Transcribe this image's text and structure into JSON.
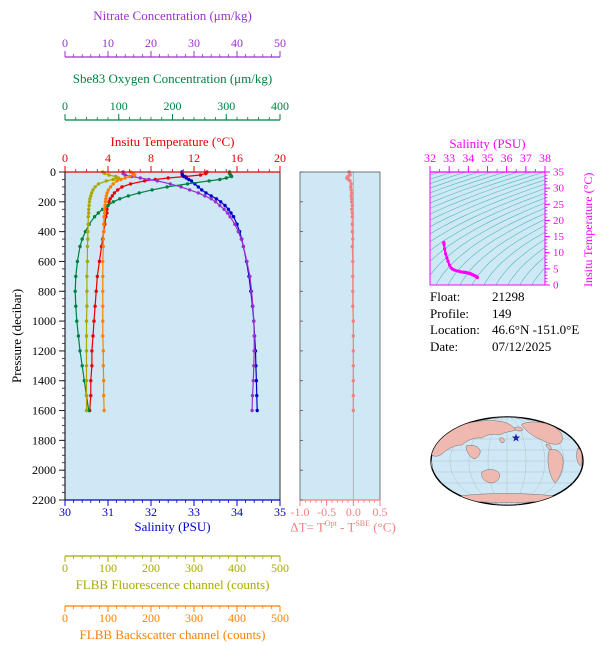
{
  "colors": {
    "nitrate": "#9b30d0",
    "oxygen": "#008040",
    "temperature": "#e60000",
    "salinity": "#0000cd",
    "pressure": "#000000",
    "fluorescence": "#a8a800",
    "backscatter": "#ff8000",
    "delta_t": "#f08080",
    "ts": "#ff00ff",
    "contour": "#35b2b2",
    "plot_bg": "#cfe8f5",
    "land": "#efb9b0",
    "ocean": "#cfe8f5",
    "marker_star": "#2020a0"
  },
  "top_axes": [
    {
      "id": "nitrate",
      "label": "Nitrate Concentration (μm/kg)",
      "ticks": [
        "0",
        "10",
        "20",
        "30",
        "40",
        "50"
      ],
      "range": [
        0,
        50
      ],
      "minor_step": 2,
      "color": "nitrate"
    },
    {
      "id": "oxygen",
      "label": "Sbe83 Oxygen Concentration (μm/kg)",
      "ticks": [
        "0",
        "100",
        "200",
        "300",
        "400"
      ],
      "range": [
        0,
        400
      ],
      "minor_step": 20,
      "color": "oxygen"
    },
    {
      "id": "temperature",
      "label": "Insitu Temperature (°C)",
      "ticks": [
        "0",
        "4",
        "8",
        "12",
        "16",
        "20"
      ],
      "range": [
        0,
        20
      ],
      "minor_step": 1,
      "color": "temperature"
    }
  ],
  "pressure_axis": {
    "label": "Pressure (decibar)",
    "ticks": [
      "0",
      "200",
      "400",
      "600",
      "800",
      "1000",
      "1200",
      "1400",
      "1600",
      "1800",
      "2000",
      "2200"
    ],
    "range": [
      0,
      2200
    ],
    "minor_step": 50
  },
  "salinity_axis": {
    "label": "Salinity (PSU)",
    "ticks": [
      "30",
      "31",
      "32",
      "33",
      "34",
      "35"
    ],
    "range": [
      30,
      35
    ],
    "minor_step": 0.2,
    "color": "salinity"
  },
  "delta_axis": {
    "label_parts": {
      "pre": "ΔT= T",
      "sup1": "Opt",
      "mid": " - T",
      "sup2": "SBE",
      "post": " (°C)"
    },
    "ticks": [
      "-1.0",
      "-0.5",
      "0.0",
      "0.5"
    ],
    "range": [
      -1.0,
      0.5
    ],
    "minor_step": 0.1,
    "color": "delta_t"
  },
  "ts_plot": {
    "salinity_label": "Salinity (PSU)",
    "temperature_label": "Insitu Temperature (°C)",
    "s_ticks": [
      "32",
      "33",
      "34",
      "35",
      "36",
      "37",
      "38"
    ],
    "s_range": [
      32,
      38
    ],
    "s_minor": 0.5,
    "t_ticks": [
      "0",
      "5",
      "10",
      "15",
      "20",
      "25",
      "30",
      "35"
    ],
    "t_range": [
      0,
      35
    ],
    "t_minor": 1,
    "sigma_levels_start": 18,
    "sigma_levels_end": 30,
    "sigma_step": 0.5
  },
  "flbb_axes": [
    {
      "id": "fluorescence",
      "label": "FLBB Fluorescence channel (counts)",
      "ticks": [
        "0",
        "100",
        "200",
        "300",
        "400",
        "500"
      ],
      "range": [
        0,
        500
      ],
      "minor_step": 20,
      "color": "fluorescence"
    },
    {
      "id": "backscatter",
      "label": "FLBB Backscatter channel (counts)",
      "ticks": [
        "0",
        "100",
        "200",
        "300",
        "400",
        "500"
      ],
      "range": [
        0,
        500
      ],
      "minor_step": 20,
      "color": "backscatter"
    }
  ],
  "info": {
    "rows": [
      {
        "label": "Float:",
        "value": "21298"
      },
      {
        "label": "Profile:",
        "value": "149"
      },
      {
        "label": "Location:",
        "value": "46.6°N -151.0°E"
      },
      {
        "label": "Date:",
        "value": "07/12/2025"
      }
    ]
  },
  "chart_data": {
    "type": "line",
    "title": "Float profile 21298 / 149",
    "ylabel": "Pressure (decibar)",
    "ylim": [
      0,
      2200
    ],
    "pressure_dbar": [
      0,
      10,
      20,
      30,
      40,
      50,
      60,
      80,
      100,
      120,
      140,
      160,
      180,
      200,
      225,
      250,
      275,
      300,
      350,
      400,
      450,
      500,
      600,
      700,
      800,
      900,
      1000,
      1100,
      1200,
      1300,
      1400,
      1500,
      1600
    ],
    "series": [
      {
        "id": "temperature",
        "name": "Insitu Temperature (°C)",
        "range": [
          0,
          20
        ],
        "color": "temperature",
        "values": [
          13.2,
          13.1,
          12.6,
          11.2,
          9.6,
          8.4,
          7.4,
          6.1,
          5.3,
          4.9,
          4.6,
          4.4,
          4.2,
          4.1,
          4.0,
          3.9,
          3.9,
          3.8,
          3.7,
          3.6,
          3.5,
          3.4,
          3.2,
          3.0,
          2.9,
          2.8,
          2.7,
          2.6,
          2.5,
          2.5,
          2.4,
          2.4,
          2.3
        ]
      },
      {
        "id": "salinity",
        "name": "Salinity (PSU)",
        "range": [
          30,
          35
        ],
        "color": "salinity",
        "values": [
          32.72,
          32.72,
          32.73,
          32.76,
          32.82,
          32.88,
          32.94,
          33.02,
          33.1,
          33.18,
          33.28,
          33.4,
          33.52,
          33.62,
          33.72,
          33.8,
          33.86,
          33.92,
          34.0,
          34.06,
          34.11,
          34.15,
          34.22,
          34.28,
          34.32,
          34.36,
          34.39,
          34.41,
          34.43,
          34.44,
          34.45,
          34.46,
          34.47
        ]
      },
      {
        "id": "oxygen",
        "name": "Sbe83 Oxygen Concentration (μm/kg)",
        "range": [
          0,
          400
        ],
        "color": "oxygen",
        "values": [
          306,
          306,
          308,
          310,
          300,
          288,
          268,
          228,
          190,
          162,
          138,
          118,
          102,
          90,
          80,
          70,
          62,
          55,
          45,
          38,
          32,
          28,
          23,
          20,
          19,
          20,
          22,
          25,
          28,
          32,
          36,
          40,
          44
        ]
      },
      {
        "id": "nitrate",
        "name": "Nitrate Concentration (μm/kg)",
        "range": [
          0,
          50
        ],
        "color": "nitrate",
        "values": [
          13.5,
          13.5,
          14,
          15.5,
          17.5,
          19.5,
          21.5,
          24.5,
          27,
          29,
          31,
          32.5,
          34,
          35,
          36,
          37,
          37.8,
          38.4,
          39.5,
          40.3,
          41,
          41.5,
          42.3,
          43,
          43.4,
          43.7,
          43.9,
          44,
          44,
          43.9,
          43.8,
          43.6,
          43.5
        ]
      },
      {
        "id": "fluorescence",
        "name": "FLBB Fluorescence channel (counts)",
        "range": [
          0,
          500
        ],
        "color": "fluorescence",
        "values": [
          88,
          92,
          102,
          118,
          124,
          112,
          96,
          78,
          70,
          65,
          62,
          60,
          58,
          57,
          56,
          55,
          55,
          54,
          54,
          53,
          53,
          52,
          52,
          51,
          51,
          51,
          50,
          50,
          50,
          50,
          50,
          50,
          50
        ]
      },
      {
        "id": "backscatter",
        "name": "FLBB Backscatter channel (counts)",
        "range": [
          0,
          500
        ],
        "color": "backscatter",
        "values": [
          152,
          158,
          162,
          150,
          140,
          130,
          121,
          112,
          106,
          101,
          98,
          96,
          95,
          94,
          93,
          92,
          92,
          91,
          90,
          90,
          89,
          89,
          88,
          88,
          88,
          88,
          88,
          88,
          89,
          89,
          90,
          90,
          91
        ]
      }
    ],
    "delta_t": {
      "id": "delta_t",
      "name": "ΔT = TOpt - TSBE (°C)",
      "range": [
        -1.0,
        0.5
      ],
      "color": "delta_t",
      "values": [
        -0.08,
        -0.07,
        -0.06,
        -0.1,
        -0.12,
        -0.09,
        -0.06,
        -0.04,
        -0.05,
        -0.04,
        -0.03,
        -0.04,
        -0.03,
        -0.03,
        -0.02,
        -0.03,
        -0.02,
        -0.02,
        -0.02,
        -0.02,
        -0.01,
        -0.02,
        -0.01,
        -0.01,
        -0.01,
        -0.01,
        0.0,
        0.0,
        0.0,
        0.0,
        0.0,
        0.0,
        0.0
      ]
    },
    "ts_curve": {
      "x_series": "salinity",
      "y_series": "temperature"
    }
  }
}
